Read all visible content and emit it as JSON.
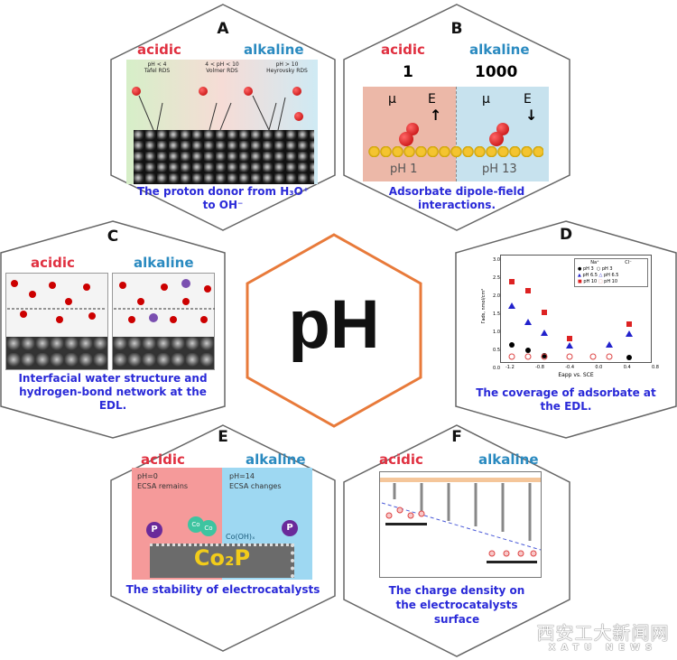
{
  "center": {
    "label": "pH",
    "border_color": "#e87a3a"
  },
  "colors": {
    "acidic": "#e03040",
    "alkaline": "#2a8ac0",
    "caption": "#2a2ad8"
  },
  "panels": {
    "A": {
      "letter": "A",
      "acidic": "acidic",
      "alkaline": "alkaline",
      "regions": [
        {
          "ph": "pH < 4",
          "rds": "Tafel RDS"
        },
        {
          "ph": "4 < pH < 10",
          "rds": "Volmer RDS"
        },
        {
          "ph": "pH > 10",
          "rds": "Heyrovsky RDS"
        }
      ],
      "caption1": "The proton donor from H₃O⁺",
      "caption2": "to OH⁻"
    },
    "B": {
      "letter": "B",
      "acidic": "acidic",
      "alkaline": "alkaline",
      "ratio_left": "1",
      "ratio_right": "1000",
      "mu": "μ",
      "e": "E",
      "ph_left": "pH 1",
      "ph_right": "pH 13",
      "caption1": "Adsorbate dipole-field",
      "caption2": "interactions."
    },
    "C": {
      "letter": "C",
      "acidic": "acidic",
      "alkaline": "alkaline",
      "caption1": "Interfacial water structure and",
      "caption2": "hydrogen-bond network at the",
      "caption3": "EDL."
    },
    "D": {
      "letter": "D",
      "ylabel": "Γads, nmol/cm²",
      "xlabel": "Eapp vs. SCE",
      "yticks": [
        "3.0",
        "2.5",
        "2.0",
        "1.5",
        "1.0",
        "0.5",
        "0.0"
      ],
      "xticks": [
        "-1.2",
        "-0.8",
        "-0.4",
        "0.0",
        "0.4",
        "0.8"
      ],
      "legend": {
        "col1": "Na⁺",
        "col2": "Cl⁻",
        "rows": [
          "pH 3",
          "pH 6.5",
          "pH 10"
        ]
      },
      "caption1": "The coverage of adsorbate at",
      "caption2": "the EDL."
    },
    "E": {
      "letter": "E",
      "acidic": "acidic",
      "alkaline": "alkaline",
      "left_ph": "pH=0",
      "left_note": "ECSA remains",
      "right_ph": "pH=14",
      "right_note": "ECSA changes",
      "p": "P",
      "co": "Co",
      "cooh": "Co(OH)ₓ",
      "material": "Co₂P",
      "caption1": "The stability of electrocatalysts"
    },
    "F": {
      "letter": "F",
      "acidic": "acidic",
      "alkaline": "alkaline",
      "caption1": "The charge density on",
      "caption2": "the electrocatalysts",
      "caption3": "surface"
    }
  },
  "watermark": {
    "cn": "西安工大新闻网",
    "en": "XATU NEWS"
  }
}
